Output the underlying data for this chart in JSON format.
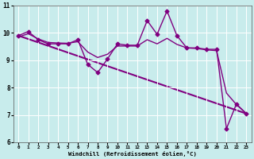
{
  "bg_color": "#c8ecec",
  "line_color": "#800080",
  "grid_color": "#ffffff",
  "xlim": [
    -0.5,
    23.5
  ],
  "ylim": [
    6,
    11
  ],
  "xticks": [
    0,
    1,
    2,
    3,
    4,
    5,
    6,
    7,
    8,
    9,
    10,
    11,
    12,
    13,
    14,
    15,
    16,
    17,
    18,
    19,
    20,
    21,
    22,
    23
  ],
  "yticks": [
    6,
    7,
    8,
    9,
    10,
    11
  ],
  "xlabel": "Windchill (Refroidissement éolien,°C)",
  "series_jagged": {
    "x": [
      0,
      1,
      2,
      3,
      4,
      5,
      6,
      7,
      8,
      9,
      10,
      11,
      12,
      13,
      14,
      15,
      16,
      17,
      18,
      19,
      20,
      21,
      22,
      23
    ],
    "y": [
      9.9,
      10.05,
      9.75,
      9.6,
      9.6,
      9.6,
      9.75,
      8.85,
      8.55,
      9.05,
      9.6,
      9.55,
      9.55,
      10.45,
      9.95,
      10.8,
      9.9,
      9.45,
      9.45,
      9.4,
      9.4,
      6.5,
      7.4,
      7.05
    ],
    "linewidth": 1.0,
    "markersize": 2.5
  },
  "series_straight": {
    "x": [
      0,
      23
    ],
    "y": [
      9.9,
      7.05
    ],
    "linewidth": 1.5
  },
  "series_smooth": {
    "x": [
      0,
      1,
      2,
      3,
      4,
      5,
      6,
      7,
      8,
      9,
      10,
      11,
      12,
      13,
      14,
      15,
      16,
      17,
      18,
      19,
      20,
      21,
      22,
      23
    ],
    "y": [
      9.85,
      9.97,
      9.78,
      9.65,
      9.63,
      9.62,
      9.68,
      9.3,
      9.1,
      9.22,
      9.52,
      9.52,
      9.52,
      9.75,
      9.6,
      9.8,
      9.58,
      9.45,
      9.43,
      9.38,
      9.35,
      7.8,
      7.38,
      7.05
    ],
    "linewidth": 1.0
  }
}
